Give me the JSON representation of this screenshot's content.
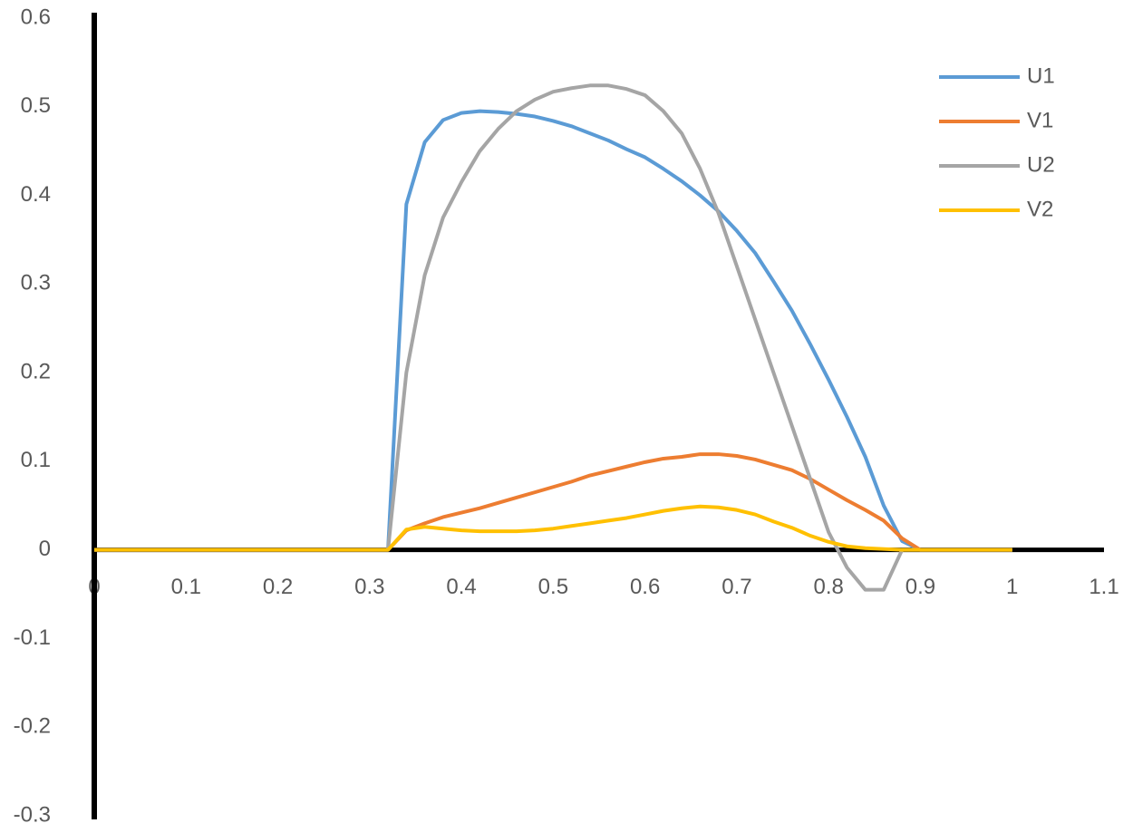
{
  "chart_data": {
    "type": "line",
    "x": [
      0,
      0.02,
      0.04,
      0.06,
      0.08,
      0.1,
      0.12,
      0.14,
      0.16,
      0.18,
      0.2,
      0.22,
      0.24,
      0.26,
      0.28,
      0.3,
      0.32,
      0.34,
      0.36,
      0.38,
      0.4,
      0.42,
      0.44,
      0.46,
      0.48,
      0.5,
      0.52,
      0.54,
      0.56,
      0.58,
      0.6,
      0.62,
      0.64,
      0.66,
      0.68,
      0.7,
      0.72,
      0.74,
      0.76,
      0.78,
      0.8,
      0.82,
      0.84,
      0.86,
      0.88,
      0.9,
      0.92,
      0.94,
      0.96,
      0.98,
      1
    ],
    "series": [
      {
        "name": "U1",
        "color": "#5b9bd5",
        "values": [
          0,
          0,
          0,
          0,
          0,
          0,
          0,
          0,
          0,
          0,
          0,
          0,
          0,
          0,
          0,
          0,
          0,
          0.39,
          0.46,
          0.485,
          0.493,
          0.495,
          0.494,
          0.492,
          0.489,
          0.484,
          0.478,
          0.47,
          0.462,
          0.452,
          0.443,
          0.43,
          0.416,
          0.4,
          0.382,
          0.36,
          0.335,
          0.303,
          0.27,
          0.232,
          0.192,
          0.15,
          0.105,
          0.05,
          0.01,
          0,
          0,
          0,
          0,
          0,
          0
        ]
      },
      {
        "name": "V1",
        "color": "#ed7d31",
        "values": [
          0,
          0,
          0,
          0,
          0,
          0,
          0,
          0,
          0,
          0,
          0,
          0,
          0,
          0,
          0,
          0,
          0,
          0.022,
          0.03,
          0.037,
          0.042,
          0.047,
          0.053,
          0.059,
          0.065,
          0.071,
          0.077,
          0.084,
          0.089,
          0.094,
          0.099,
          0.103,
          0.105,
          0.108,
          0.108,
          0.106,
          0.102,
          0.096,
          0.09,
          0.08,
          0.068,
          0.056,
          0.045,
          0.033,
          0.013,
          0,
          0,
          0,
          0,
          0,
          0
        ]
      },
      {
        "name": "U2",
        "color": "#a5a5a5",
        "values": [
          0,
          0,
          0,
          0,
          0,
          0,
          0,
          0,
          0,
          0,
          0,
          0,
          0,
          0,
          0,
          0,
          0,
          0.2,
          0.31,
          0.375,
          0.415,
          0.45,
          0.475,
          0.495,
          0.508,
          0.517,
          0.521,
          0.524,
          0.524,
          0.52,
          0.513,
          0.495,
          0.47,
          0.43,
          0.38,
          0.32,
          0.26,
          0.2,
          0.14,
          0.08,
          0.02,
          -0.02,
          -0.045,
          -0.045,
          0,
          0,
          0,
          0,
          0,
          0,
          0
        ]
      },
      {
        "name": "V2",
        "color": "#ffc000",
        "values": [
          0,
          0,
          0,
          0,
          0,
          0,
          0,
          0,
          0,
          0,
          0,
          0,
          0,
          0,
          0,
          0,
          0,
          0.023,
          0.026,
          0.024,
          0.022,
          0.021,
          0.021,
          0.021,
          0.022,
          0.024,
          0.027,
          0.03,
          0.033,
          0.036,
          0.04,
          0.044,
          0.047,
          0.049,
          0.048,
          0.045,
          0.04,
          0.032,
          0.025,
          0.016,
          0.009,
          0.004,
          0.002,
          0.001,
          0,
          0,
          0,
          0,
          0,
          0,
          0
        ]
      }
    ],
    "xlim": [
      0,
      1.1
    ],
    "xticks": [
      0,
      0.1,
      0.2,
      0.3,
      0.4,
      0.5,
      0.6,
      0.7,
      0.8,
      0.9,
      1,
      1.1
    ],
    "ylim": [
      -0.3,
      0.6
    ],
    "yticks": [
      0.6,
      0.5,
      0.4,
      0.3,
      0.2,
      0.1,
      0,
      -0.1,
      -0.2,
      -0.3
    ],
    "legend": "top-right"
  }
}
